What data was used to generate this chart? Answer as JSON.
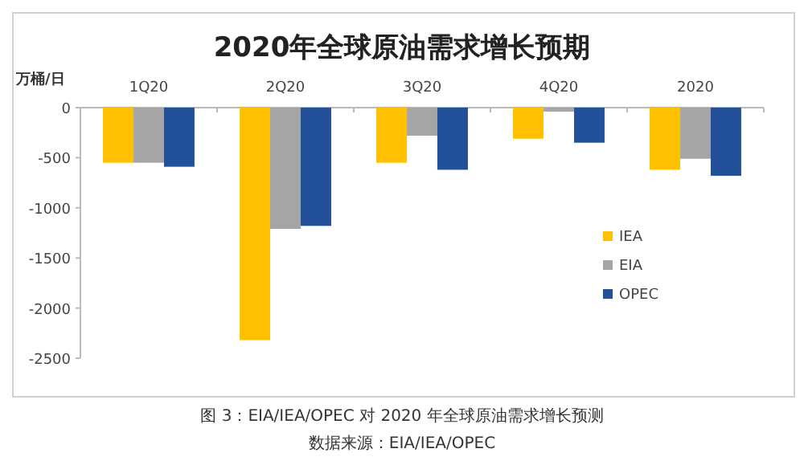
{
  "chart_data": {
    "type": "bar",
    "title": "2020年全球原油需求增长预期",
    "ylabel": "万桶/日",
    "categories": [
      "1Q20",
      "2Q20",
      "3Q20",
      "4Q20",
      "2020"
    ],
    "series": [
      {
        "name": "IEA",
        "color": "#ffc000",
        "values": [
          -550,
          -2320,
          -550,
          -310,
          -620
        ]
      },
      {
        "name": "EIA",
        "color": "#a5a5a5",
        "values": [
          -550,
          -1210,
          -280,
          -40,
          -510
        ]
      },
      {
        "name": "OPEC",
        "color": "#22519a",
        "values": [
          -590,
          -1180,
          -620,
          -350,
          -680
        ]
      }
    ],
    "ylim": [
      -2500,
      0
    ],
    "yticks": [
      0,
      -500,
      -1000,
      -1500,
      -2000,
      -2500
    ],
    "legend": "right",
    "annotations": [
      "图 3：EIA/IEA/OPEC 对 2020 年全球原油需求增长预测",
      "数据来源：EIA/IEA/OPEC"
    ]
  }
}
